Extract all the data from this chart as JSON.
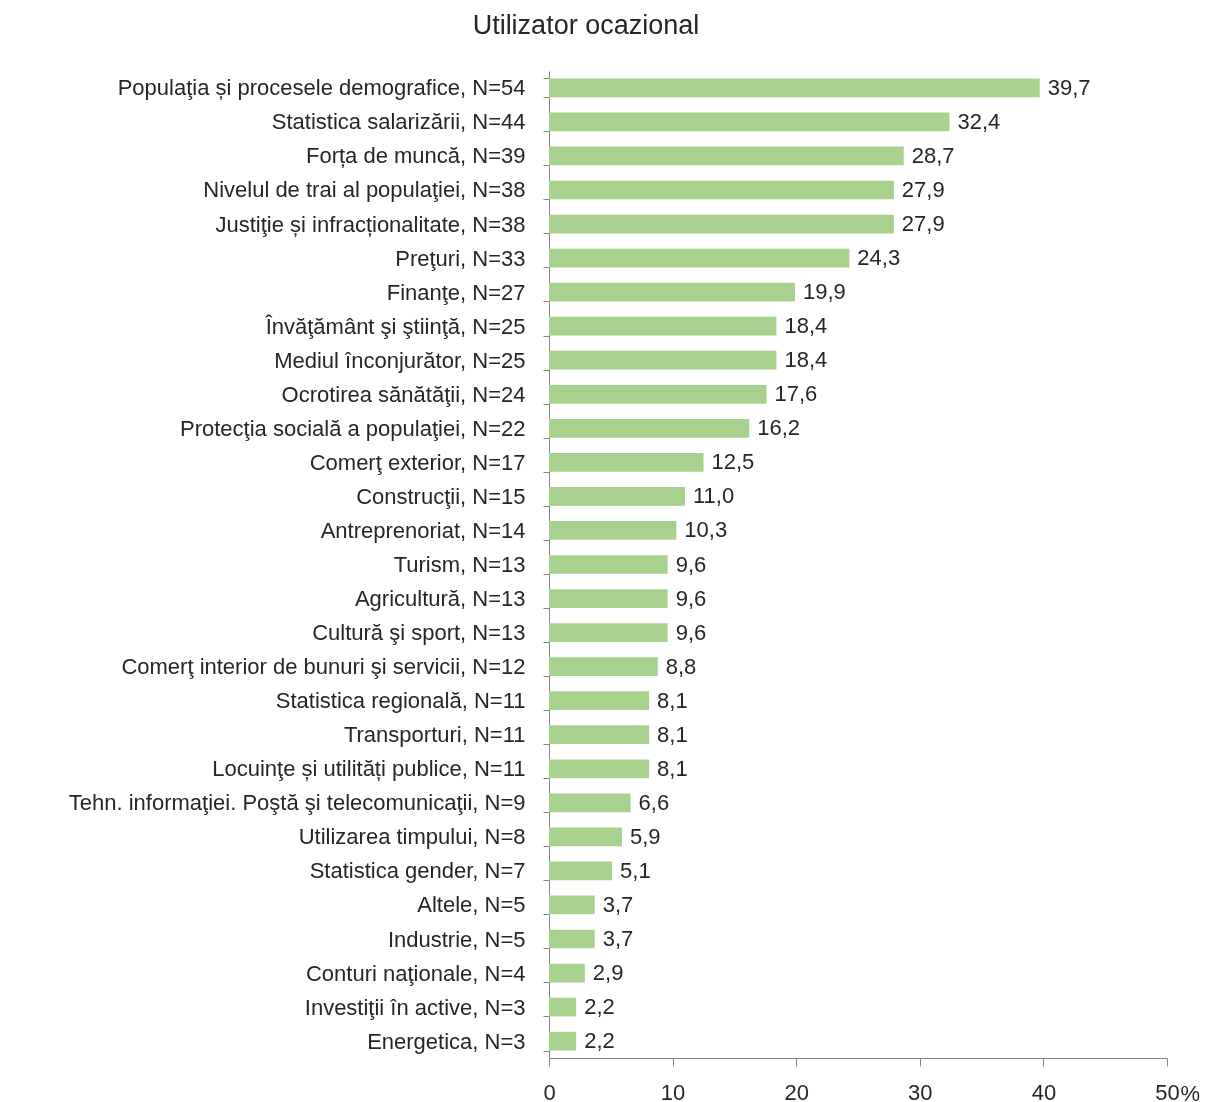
{
  "chart_data": {
    "type": "bar",
    "orientation": "horizontal",
    "title": "Utilizator ocazional",
    "xlabel": "%",
    "categories": [
      "Populaţia și procesele demografice, N=54",
      "Statistica salarizării, N=44",
      "Forța de muncă, N=39",
      "Nivelul de trai al populaţiei, N=38",
      "Justiţie și infracționalitate, N=38",
      "Preţuri, N=33",
      "Finanţe, N=27",
      "Învăţământ şi ştiinţă, N=25",
      "Mediul înconjurător, N=25",
      "Ocrotirea sănătăţii, N=24",
      "Protecţia socială a populaţiei, N=22",
      "Comerţ exterior, N=17",
      "Construcţii, N=15",
      "Antreprenoriat, N=14",
      "Turism, N=13",
      "Agricultură, N=13",
      "Cultură şi sport, N=13",
      "Comerţ interior de bunuri şi servicii, N=12",
      "Statistica regională, N=11",
      "Transporturi, N=11",
      "Locuinţe și utilități publice, N=11",
      "Tehn. informaţiei. Poştă şi telecomunicaţii, N=9",
      "Utilizarea timpului, N=8",
      "Statistica gender, N=7",
      "Altele, N=5",
      "Industrie, N=5",
      "Conturi naţionale, N=4",
      "Investiţii în active, N=3",
      "Energetica, N=3"
    ],
    "values": [
      39.7,
      32.4,
      28.7,
      27.9,
      27.9,
      24.3,
      19.9,
      18.4,
      18.4,
      17.6,
      16.2,
      12.5,
      11.0,
      10.3,
      9.6,
      9.6,
      9.6,
      8.8,
      8.1,
      8.1,
      8.1,
      6.6,
      5.9,
      5.1,
      3.7,
      3.7,
      2.9,
      2.2,
      2.2
    ],
    "value_labels": [
      "39,7",
      "32,4",
      "28,7",
      "27,9",
      "27,9",
      "24,3",
      "19,9",
      "18,4",
      "18,4",
      "17,6",
      "16,2",
      "12,5",
      "11,0",
      "10,3",
      "9,6",
      "9,6",
      "9,6",
      "8,8",
      "8,1",
      "8,1",
      "8,1",
      "6,6",
      "5,9",
      "5,1",
      "3,7",
      "3,7",
      "2,9",
      "2,2",
      "2,2"
    ],
    "color": "#a9d18e",
    "xlim": [
      0,
      50
    ],
    "xticks": [
      0,
      10,
      20,
      30,
      40,
      50
    ]
  }
}
